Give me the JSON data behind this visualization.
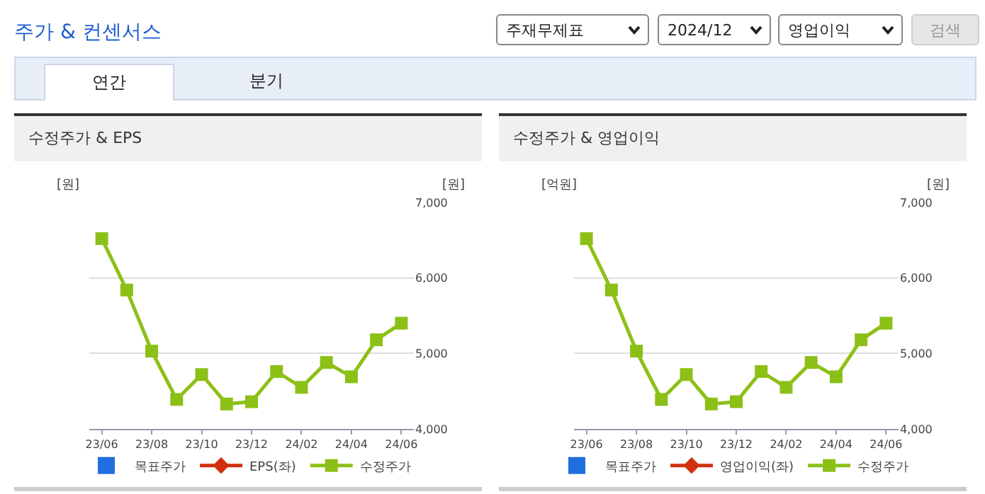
{
  "chart_data": [
    {
      "type": "other",
      "title": "주가 & 컨센서스",
      "annotations": [
        "주재무제표",
        "2024/12",
        "영업이익",
        "검색",
        "연간",
        "분기"
      ]
    },
    {
      "type": "line",
      "title": "수정주가 & EPS",
      "ylabel": "[원]",
      "y2label": "[원]",
      "categories": [
        "23/06",
        null,
        "23/08",
        null,
        "23/10",
        null,
        "23/12",
        null,
        "24/02",
        null,
        "24/04",
        null,
        "24/06"
      ],
      "series": [
        {
          "name": "목표주가",
          "type": "bar",
          "color": "#1f6fe0",
          "values": [
            null,
            null,
            null,
            null,
            null,
            null,
            null,
            null,
            null,
            null,
            null,
            null,
            null
          ]
        },
        {
          "name": "EPS(좌)",
          "type": "line",
          "marker": "diamond",
          "color": "#d0300f",
          "values": [
            null,
            null,
            null,
            null,
            null,
            null,
            null,
            null,
            null,
            null,
            null,
            null,
            null
          ]
        },
        {
          "name": "수정주가",
          "type": "line",
          "marker": "square",
          "axis": "y2",
          "color": "#8cc017",
          "values": [
            6520,
            5840,
            5030,
            4390,
            4720,
            4330,
            4360,
            4760,
            4550,
            4880,
            4690,
            5180,
            5400
          ]
        }
      ],
      "y2lim": [
        4000,
        7000
      ],
      "y2ticks": [
        {
          "value": 4000,
          "label": "4,000"
        },
        {
          "value": 5000,
          "label": "5,000"
        },
        {
          "value": 6000,
          "label": "6,000"
        },
        {
          "value": 7000,
          "label": "7,000"
        }
      ],
      "grid": "y",
      "legend": "bottom"
    },
    {
      "type": "line",
      "title": "수정주가 & 영업이익",
      "ylabel": "[억원]",
      "y2label": "[원]",
      "categories": [
        "23/06",
        null,
        "23/08",
        null,
        "23/10",
        null,
        "23/12",
        null,
        "24/02",
        null,
        "24/04",
        null,
        "24/06"
      ],
      "series": [
        {
          "name": "목표주가",
          "type": "bar",
          "color": "#1f6fe0",
          "values": [
            null,
            null,
            null,
            null,
            null,
            null,
            null,
            null,
            null,
            null,
            null,
            null,
            null
          ]
        },
        {
          "name": "영업이익(좌)",
          "type": "line",
          "marker": "diamond",
          "color": "#d0300f",
          "values": [
            null,
            null,
            null,
            null,
            null,
            null,
            null,
            null,
            null,
            null,
            null,
            null,
            null
          ]
        },
        {
          "name": "수정주가",
          "type": "line",
          "marker": "square",
          "axis": "y2",
          "color": "#8cc017",
          "values": [
            6520,
            5840,
            5030,
            4390,
            4720,
            4330,
            4360,
            4760,
            4550,
            4880,
            4690,
            5180,
            5400
          ]
        }
      ],
      "y2lim": [
        4000,
        7000
      ],
      "y2ticks": [
        {
          "value": 4000,
          "label": "4,000"
        },
        {
          "value": 5000,
          "label": "5,000"
        },
        {
          "value": 6000,
          "label": "6,000"
        },
        {
          "value": 7000,
          "label": "7,000"
        }
      ],
      "grid": "y",
      "legend": "bottom"
    }
  ]
}
